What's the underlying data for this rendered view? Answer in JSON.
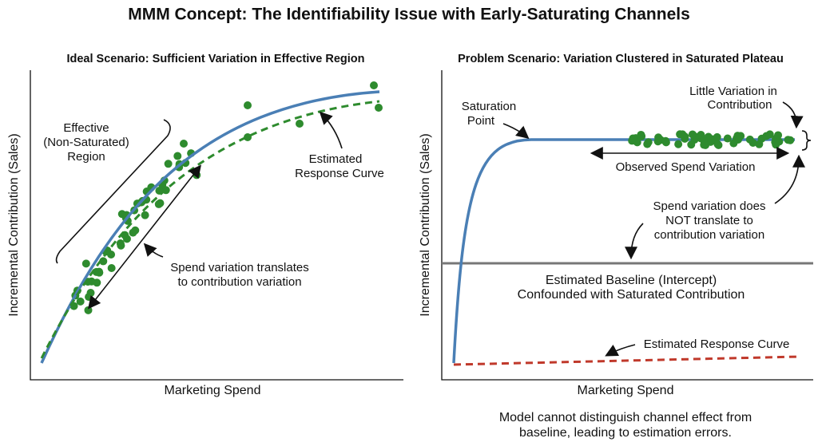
{
  "title": "MMM Concept: The Identifiability Issue with Early-Saturating Channels",
  "left_panel": {
    "subtitle": "Ideal Scenario: Sufficient Variation in Effective Region",
    "x_label": "Marketing Spend",
    "y_label": "Incremental Contribution (Sales)",
    "region_label": [
      "Effective",
      "(Non-Saturated)",
      "Region"
    ],
    "variation_label": [
      "Spend variation translates",
      "to contribution variation"
    ],
    "curve_label": [
      "Estimated",
      "Response Curve"
    ]
  },
  "right_panel": {
    "subtitle": "Problem Scenario: Variation Clustered in Saturated Plateau",
    "x_label": "Marketing Spend",
    "y_label": "Incremental Contribution (Sales)",
    "saturation_label": [
      "Saturation",
      "Point"
    ],
    "little_variation_label": [
      "Little Variation in",
      "Contribution"
    ],
    "spend_label": "Observed Spend Variation",
    "no_translate_label": [
      "Spend variation does",
      "NOT translate to",
      "contribution variation"
    ],
    "baseline_label": [
      "Estimated Baseline (Intercept)",
      "Confounded with Saturated Contribution"
    ],
    "curve_label": "Estimated Response Curve"
  },
  "footer": [
    "Model cannot distinguish channel effect from",
    "baseline, leading to estimation errors."
  ]
}
